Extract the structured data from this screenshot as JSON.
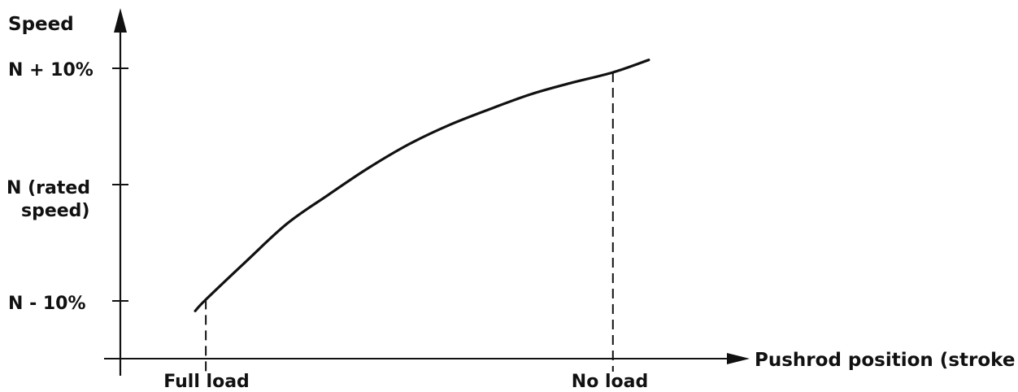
{
  "chart_data": {
    "type": "line",
    "title": "",
    "ylabel": "Speed",
    "xlabel": "Pushrod position (stroke",
    "y_ticks": [
      {
        "value": -10,
        "label": [
          "N - 10%"
        ]
      },
      {
        "value": 0,
        "label": [
          "N (rated",
          "speed)"
        ]
      },
      {
        "value": 10,
        "label": [
          "N + 10%"
        ]
      }
    ],
    "x_ticks": [
      {
        "value": 0,
        "label": "Full load"
      },
      {
        "value": 100,
        "label": "No load"
      }
    ],
    "x_range": [
      -21,
      130
    ],
    "y_range": [
      -15.2,
      14.8
    ],
    "series": [
      {
        "x": [
          -2.6,
          0,
          10,
          20,
          30,
          40,
          50,
          60,
          70,
          80,
          90,
          100,
          108.8
        ],
        "y": [
          -11.0,
          -10.0,
          -6.6,
          -3.3,
          -0.8,
          1.6,
          3.7,
          5.4,
          6.8,
          8.1,
          9.1,
          10.0,
          11.1
        ]
      }
    ],
    "dropline_x": [
      0,
      100
    ],
    "grid": false,
    "legend": "none"
  }
}
